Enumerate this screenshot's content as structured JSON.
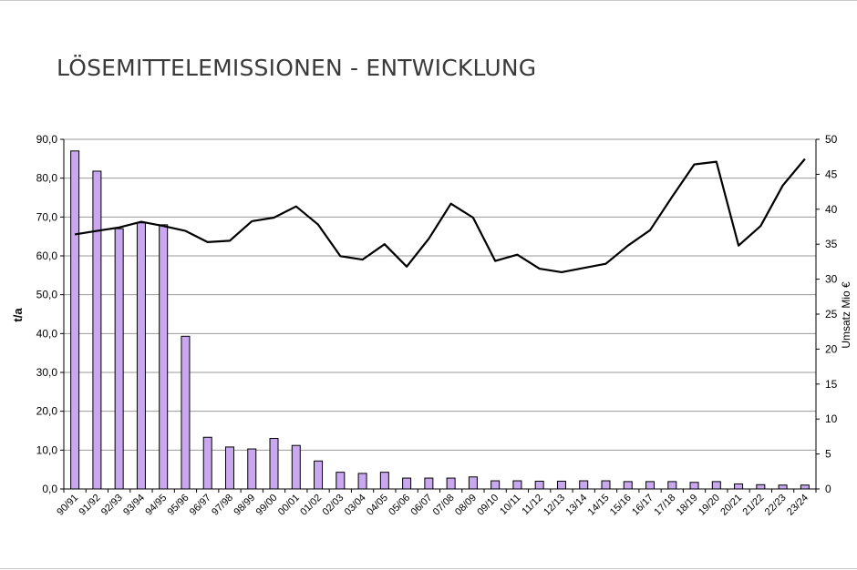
{
  "slide": {
    "title": "LÖSEMITTELEMISSIONEN - ENTWICKLUNG"
  },
  "chart_data": {
    "type": "bar",
    "title": "LÖSEMITTELEMISSIONEN - ENTWICKLUNG",
    "categories": [
      "90/91",
      "91/92",
      "92/93",
      "93/94",
      "94/95",
      "95/96",
      "96/97",
      "97/98",
      "98/99",
      "99/00",
      "00/01",
      "01/02",
      "02/03",
      "03/04",
      "04/05",
      "05/06",
      "06/07",
      "07/08",
      "08/09",
      "09/10",
      "10/11",
      "11/12",
      "12/13",
      "13/14",
      "14/15",
      "15/16",
      "16/17",
      "17/18",
      "18/19",
      "19/20",
      "20/21",
      "21/22",
      "22/23",
      "23/24"
    ],
    "ylabel": "t/a",
    "ylabel_right": "Umsatz Mio €",
    "ylim": [
      0,
      90
    ],
    "ylim_right": [
      0,
      50
    ],
    "yticks": [
      "0,0",
      "10,0",
      "20,0",
      "30,0",
      "40,0",
      "50,0",
      "60,0",
      "70,0",
      "80,0",
      "90,0"
    ],
    "yticks_right": [
      "0",
      "5",
      "10",
      "15",
      "20",
      "25",
      "30",
      "35",
      "40",
      "45",
      "50"
    ],
    "grid": true,
    "legend": "none",
    "series": [
      {
        "kind": "bar",
        "axis": "left",
        "color": "#c9a8f0",
        "values": [
          87.0,
          81.8,
          67.0,
          68.5,
          68.0,
          39.3,
          13.3,
          10.8,
          10.3,
          13.0,
          11.2,
          7.2,
          4.3,
          4.0,
          4.3,
          2.8,
          2.8,
          2.8,
          3.1,
          2.1,
          2.1,
          2.0,
          2.0,
          2.1,
          2.1,
          1.9,
          1.9,
          1.9,
          1.7,
          1.9,
          1.3,
          1.1,
          1.0,
          1.0
        ]
      },
      {
        "kind": "line",
        "axis": "right",
        "color": "#000000",
        "values": [
          36.4,
          36.9,
          37.4,
          38.2,
          37.6,
          36.9,
          35.3,
          35.5,
          38.3,
          38.8,
          40.4,
          37.8,
          33.3,
          32.8,
          35.0,
          31.8,
          35.8,
          40.8,
          38.8,
          32.6,
          33.5,
          31.5,
          31.0,
          31.6,
          32.2,
          34.8,
          37.0,
          41.8,
          46.4,
          46.8,
          34.8,
          37.6,
          43.4,
          47.2
        ]
      }
    ]
  }
}
